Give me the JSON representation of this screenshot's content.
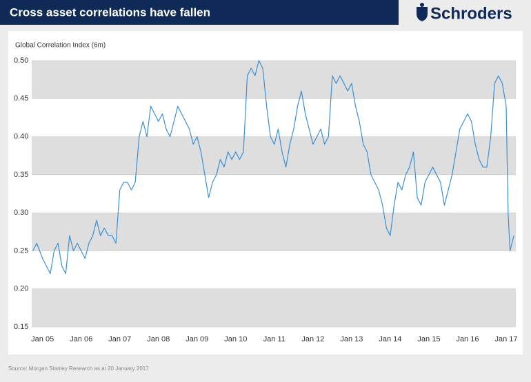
{
  "chart_data": {
    "type": "line",
    "title": "Cross asset correlations have fallen",
    "brand": "Schroders",
    "ylabel": "Global Correlation Index (6m)",
    "source": "Source: Morgan Stanley Research as at 20 January 2017",
    "color": "#3b8fd1",
    "banded_grid": true,
    "xlim": [
      2004.72,
      2017.25
    ],
    "xticks": [
      {
        "value": 2005,
        "label": "Jan 05"
      },
      {
        "value": 2006,
        "label": "Jan 06"
      },
      {
        "value": 2007,
        "label": "Jan 07"
      },
      {
        "value": 2008,
        "label": "Jan 08"
      },
      {
        "value": 2009,
        "label": "Jan 09"
      },
      {
        "value": 2010,
        "label": "Jan 10"
      },
      {
        "value": 2011,
        "label": "Jan 11"
      },
      {
        "value": 2012,
        "label": "Jan 12"
      },
      {
        "value": 2013,
        "label": "Jan 13"
      },
      {
        "value": 2014,
        "label": "Jan 14"
      },
      {
        "value": 2015,
        "label": "Jan 15"
      },
      {
        "value": 2016,
        "label": "Jan 16"
      },
      {
        "value": 2017,
        "label": "Jan 17"
      }
    ],
    "ylim": [
      0.15,
      0.5
    ],
    "yticks": [
      0.15,
      {
        "value": 0.2,
        "label": "0.20"
      },
      0.25,
      {
        "value": 0.3,
        "label": "0.30"
      },
      0.35,
      {
        "value": 0.4,
        "label": "0.40"
      },
      0.45,
      {
        "value": 0.5,
        "label": "0.50"
      }
    ],
    "x": [
      2004.75,
      2004.85,
      2005.0,
      2005.1,
      2005.2,
      2005.3,
      2005.4,
      2005.5,
      2005.6,
      2005.7,
      2005.8,
      2005.9,
      2006.0,
      2006.1,
      2006.2,
      2006.3,
      2006.4,
      2006.5,
      2006.6,
      2006.7,
      2006.8,
      2006.9,
      2007.0,
      2007.1,
      2007.2,
      2007.3,
      2007.4,
      2007.5,
      2007.6,
      2007.7,
      2007.8,
      2007.9,
      2008.0,
      2008.1,
      2008.2,
      2008.3,
      2008.4,
      2008.5,
      2008.6,
      2008.7,
      2008.8,
      2008.9,
      2009.0,
      2009.1,
      2009.2,
      2009.3,
      2009.4,
      2009.5,
      2009.6,
      2009.7,
      2009.8,
      2009.9,
      2010.0,
      2010.1,
      2010.2,
      2010.3,
      2010.4,
      2010.5,
      2010.6,
      2010.7,
      2010.8,
      2010.9,
      2011.0,
      2011.1,
      2011.2,
      2011.3,
      2011.4,
      2011.5,
      2011.6,
      2011.7,
      2011.8,
      2011.9,
      2012.0,
      2012.1,
      2012.2,
      2012.3,
      2012.4,
      2012.5,
      2012.6,
      2012.7,
      2012.8,
      2012.9,
      2013.0,
      2013.1,
      2013.2,
      2013.3,
      2013.4,
      2013.5,
      2013.6,
      2013.7,
      2013.8,
      2013.9,
      2014.0,
      2014.1,
      2014.2,
      2014.3,
      2014.4,
      2014.5,
      2014.6,
      2014.7,
      2014.8,
      2014.9,
      2015.0,
      2015.1,
      2015.2,
      2015.3,
      2015.4,
      2015.5,
      2015.6,
      2015.7,
      2015.8,
      2015.9,
      2016.0,
      2016.1,
      2016.2,
      2016.3,
      2016.4,
      2016.5,
      2016.6,
      2016.7,
      2016.8,
      2016.9,
      2017.0,
      2017.05,
      2017.1,
      2017.2
    ],
    "values": [
      0.25,
      0.26,
      0.24,
      0.23,
      0.22,
      0.25,
      0.26,
      0.23,
      0.22,
      0.27,
      0.25,
      0.26,
      0.25,
      0.24,
      0.26,
      0.27,
      0.29,
      0.27,
      0.28,
      0.27,
      0.27,
      0.26,
      0.33,
      0.34,
      0.34,
      0.33,
      0.34,
      0.4,
      0.42,
      0.4,
      0.44,
      0.43,
      0.42,
      0.43,
      0.41,
      0.4,
      0.42,
      0.44,
      0.43,
      0.42,
      0.41,
      0.39,
      0.4,
      0.38,
      0.35,
      0.32,
      0.34,
      0.35,
      0.37,
      0.36,
      0.38,
      0.37,
      0.38,
      0.37,
      0.38,
      0.48,
      0.49,
      0.48,
      0.5,
      0.49,
      0.44,
      0.4,
      0.39,
      0.41,
      0.38,
      0.36,
      0.39,
      0.41,
      0.44,
      0.46,
      0.43,
      0.41,
      0.39,
      0.4,
      0.41,
      0.39,
      0.4,
      0.48,
      0.47,
      0.48,
      0.47,
      0.46,
      0.47,
      0.44,
      0.42,
      0.39,
      0.38,
      0.35,
      0.34,
      0.33,
      0.31,
      0.28,
      0.27,
      0.31,
      0.34,
      0.33,
      0.35,
      0.36,
      0.38,
      0.32,
      0.31,
      0.34,
      0.35,
      0.36,
      0.35,
      0.34,
      0.31,
      0.33,
      0.35,
      0.38,
      0.41,
      0.42,
      0.43,
      0.42,
      0.39,
      0.37,
      0.36,
      0.36,
      0.4,
      0.47,
      0.48,
      0.47,
      0.44,
      0.3,
      0.25,
      0.27
    ]
  }
}
